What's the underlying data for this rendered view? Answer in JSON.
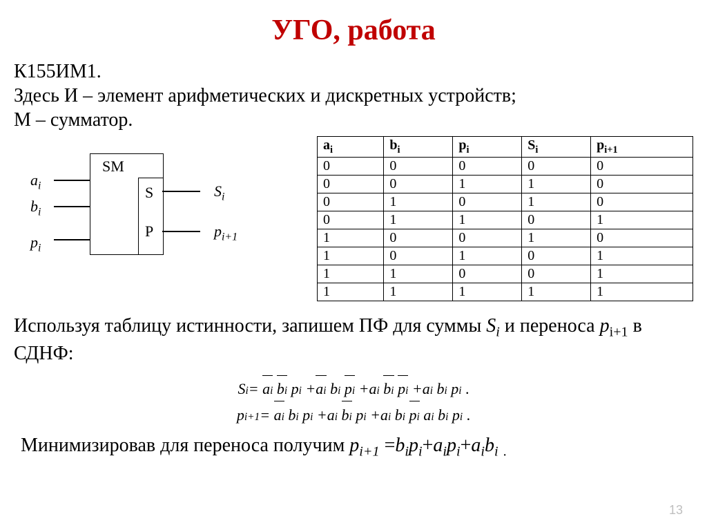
{
  "title": {
    "text": "УГО, работа",
    "color": "#c00000",
    "fontsize": 42
  },
  "intro": {
    "line1": "К155ИМ1.",
    "line2": "Здесь И – элемент арифметических и дискретных устройств;",
    "line3": "М – сумматор."
  },
  "diagram": {
    "sm_label": "SM",
    "inputs": [
      "a",
      "b",
      "p"
    ],
    "input_sub": "i",
    "outputs": [
      {
        "pin": "S",
        "ext": "S",
        "ext_sub": "i"
      },
      {
        "pin": "P",
        "ext": "p",
        "ext_sub": "i+1"
      }
    ],
    "line_color": "#000000"
  },
  "truth_table": {
    "headers": [
      {
        "sym": "a",
        "sub": "i"
      },
      {
        "sym": "b",
        "sub": "i"
      },
      {
        "sym": "p",
        "sub": "i"
      },
      {
        "sym": "S",
        "sub": "i"
      },
      {
        "sym": "p",
        "sub": "i+1"
      }
    ],
    "rows": [
      [
        "0",
        "0",
        "0",
        "0",
        "0"
      ],
      [
        "0",
        "0",
        "1",
        "1",
        "0"
      ],
      [
        "0",
        "1",
        "0",
        "1",
        "0"
      ],
      [
        "0",
        "1",
        "1",
        "0",
        "1"
      ],
      [
        "1",
        "0",
        "0",
        "1",
        "0"
      ],
      [
        "1",
        "0",
        "1",
        "0",
        "1"
      ],
      [
        "1",
        "1",
        "0",
        "0",
        "1"
      ],
      [
        "1",
        "1",
        "1",
        "1",
        "1"
      ]
    ],
    "border_color": "#000000",
    "fontsize": 20
  },
  "para2": {
    "pre": "Используя таблицу истинности, запишем ПФ для суммы ",
    "si": "S",
    "si_sub": "i",
    "mid": " и переноса ",
    "pi1": "p",
    "pi1_sub": "i+1",
    "post": " в СДНФ:"
  },
  "formulas": {
    "s": {
      "lhs": {
        "sym": "S",
        "sub": "i"
      },
      "terms": [
        [
          {
            "s": "a",
            "sub": "i",
            "bar": true
          },
          {
            "s": "b",
            "sub": "i",
            "bar": true
          },
          {
            "s": "p",
            "sub": "i",
            "bar": false
          }
        ],
        [
          {
            "s": "a",
            "sub": "i",
            "bar": true
          },
          {
            "s": "b",
            "sub": "i",
            "bar": false
          },
          {
            "s": "p",
            "sub": "i",
            "bar": true
          }
        ],
        [
          {
            "s": "a",
            "sub": "i",
            "bar": false
          },
          {
            "s": "b",
            "sub": "i",
            "bar": true
          },
          {
            "s": "p",
            "sub": "i",
            "bar": true
          }
        ],
        [
          {
            "s": "a",
            "sub": "i",
            "bar": false
          },
          {
            "s": "b",
            "sub": "i",
            "bar": false
          },
          {
            "s": "p",
            "sub": "i",
            "bar": false
          }
        ]
      ],
      "trail": "."
    },
    "p": {
      "lhs": {
        "sym": "p",
        "sub": "i+1"
      },
      "terms": [
        [
          {
            "s": "a",
            "sub": "i",
            "bar": true
          },
          {
            "s": "b",
            "sub": "i",
            "bar": false
          },
          {
            "s": "p",
            "sub": "i",
            "bar": false
          }
        ],
        [
          {
            "s": "a",
            "sub": "i",
            "bar": false
          },
          {
            "s": "b",
            "sub": "i",
            "bar": true
          },
          {
            "s": "p",
            "sub": "i",
            "bar": false
          }
        ],
        [
          {
            "s": "a",
            "sub": "i",
            "bar": false
          },
          {
            "s": "b",
            "sub": "i",
            "bar": false
          },
          {
            "s": "p",
            "sub": "i",
            "bar": true
          }
        ],
        [
          {
            "s": "a",
            "sub": "i",
            "bar": false
          },
          {
            "s": "b",
            "sub": "i",
            "bar": false
          },
          {
            "s": "p",
            "sub": "i",
            "bar": false
          }
        ]
      ],
      "last_sep_plus": false,
      "trail": "."
    }
  },
  "para3": {
    "pre": "Минимизировав для переноса получим ",
    "lhs": {
      "sym": "p",
      "sub": "i+1"
    },
    "rhs": [
      [
        {
          "s": "b",
          "sub": "i"
        },
        {
          "s": "p",
          "sub": "i"
        }
      ],
      [
        {
          "s": "a",
          "sub": "i"
        },
        {
          "s": "p",
          "sub": "i"
        }
      ],
      [
        {
          "s": "a",
          "sub": "i"
        },
        {
          "s": "b",
          "sub": "i"
        }
      ]
    ],
    "trail": "."
  },
  "page_number": "13",
  "colors": {
    "background": "#ffffff",
    "text": "#000000",
    "pagenum": "#bfbfbf"
  }
}
